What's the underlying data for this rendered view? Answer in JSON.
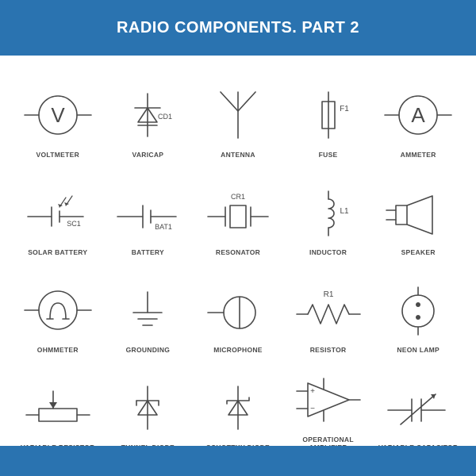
{
  "header": {
    "title": "RADIO COMPONENTS. PART 2",
    "background_color": "#2a73b0",
    "text_color": "#ffffff",
    "fontsize": 20
  },
  "footer": {
    "background_color": "#2a73b0"
  },
  "style": {
    "stroke_color": "#4a4a4a",
    "label_color": "#4a4a4a",
    "stroke_width": 1.6,
    "background": "#ffffff"
  },
  "grid": {
    "rows": 4,
    "cols": 5
  },
  "components": [
    {
      "id": "voltmeter",
      "label": "VOLTMETER",
      "annot": ""
    },
    {
      "id": "varicap",
      "label": "VARICAP",
      "annot": "CD1"
    },
    {
      "id": "antenna",
      "label": "ANTENNA",
      "annot": ""
    },
    {
      "id": "fuse",
      "label": "FUSE",
      "annot": "F1"
    },
    {
      "id": "ammeter",
      "label": "AMMETER",
      "annot": ""
    },
    {
      "id": "solar-battery",
      "label": "SOLAR BATTERY",
      "annot": "SC1"
    },
    {
      "id": "battery",
      "label": "BATTERY",
      "annot": "BAT1"
    },
    {
      "id": "resonator",
      "label": "RESONATOR",
      "annot": "CR1"
    },
    {
      "id": "inductor",
      "label": "INDUCTOR",
      "annot": "L1"
    },
    {
      "id": "speaker",
      "label": "SPEAKER",
      "annot": ""
    },
    {
      "id": "ohmmeter",
      "label": "OHMMETER",
      "annot": ""
    },
    {
      "id": "grounding",
      "label": "GROUNDING",
      "annot": ""
    },
    {
      "id": "microphone",
      "label": "MICROPHONE",
      "annot": ""
    },
    {
      "id": "resistor",
      "label": "RESISTOR",
      "annot": "R1"
    },
    {
      "id": "neon-lamp",
      "label": "NEON LAMP",
      "annot": ""
    },
    {
      "id": "variable-resistor",
      "label": "VARIABLE RESISTOR",
      "annot": ""
    },
    {
      "id": "tunnel-diode",
      "label": "TUNNEL DIODE",
      "annot": ""
    },
    {
      "id": "schottky-diode",
      "label": "SCHOTTKY DIODE",
      "annot": ""
    },
    {
      "id": "operational-amplifier",
      "label": "OPERATIONAL AMPLIFIER",
      "annot": ""
    },
    {
      "id": "variable-capacitor",
      "label": "VARIABLE CAPACITOR",
      "annot": ""
    }
  ]
}
